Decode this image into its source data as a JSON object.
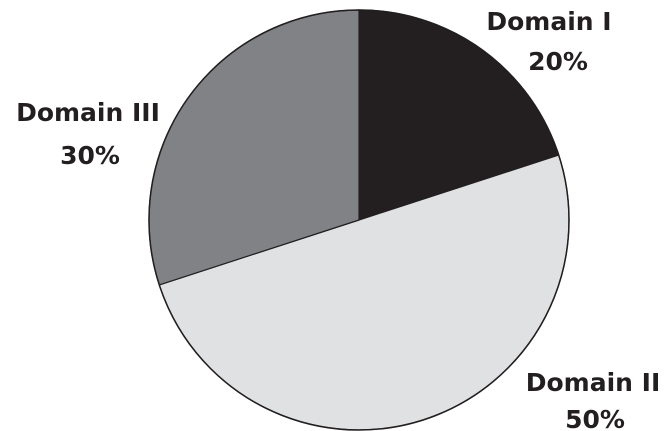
{
  "chart_data": {
    "type": "pie",
    "slices": [
      {
        "label": "Domain I",
        "value": 20,
        "display": "20%",
        "color": "#231f20"
      },
      {
        "label": "Domain II",
        "value": 50,
        "display": "50%",
        "color": "#e0e1e3"
      },
      {
        "label": "Domain III",
        "value": 30,
        "display": "30%",
        "color": "#808285"
      }
    ],
    "start": "12 o'clock",
    "direction": "clockwise",
    "outline_color": "#231f20"
  }
}
